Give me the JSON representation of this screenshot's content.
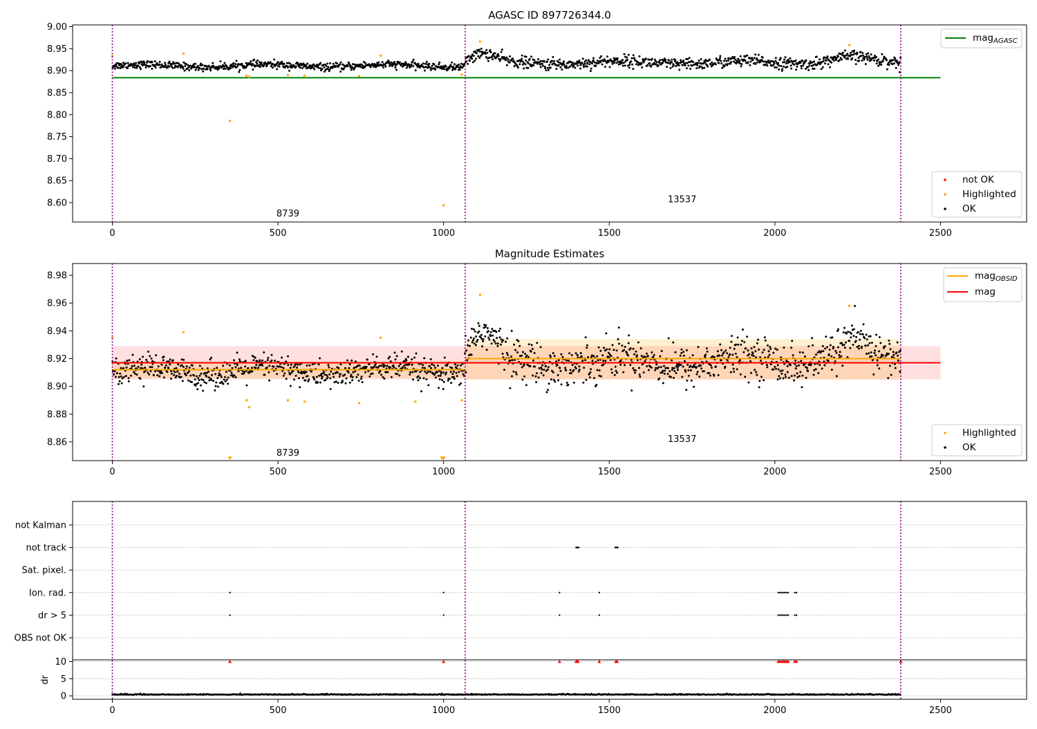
{
  "chart_data": [
    {
      "type": "scatter",
      "title": "AGASC ID 897726344.0",
      "xlim": [
        -120,
        2760
      ],
      "ylim": [
        8.556,
        9.004
      ],
      "xticks": [
        0,
        500,
        1000,
        1500,
        2000,
        2500
      ],
      "yticks": [
        8.6,
        8.65,
        8.7,
        8.75,
        8.8,
        8.85,
        8.9,
        8.95,
        9.0
      ],
      "ytick_labels": [
        "8.60",
        "8.65",
        "8.70",
        "8.75",
        "8.80",
        "8.85",
        "8.90",
        "8.95",
        "9.00"
      ],
      "vlines": [
        0,
        1065,
        2380
      ],
      "annotations": [
        {
          "text": "8739",
          "x": 530,
          "y": 8.575
        },
        {
          "text": "13537",
          "x": 1720,
          "y": 8.607
        }
      ],
      "line_legend": [
        {
          "name": "mag_AGASC",
          "main": "mag",
          "sub": "AGASC",
          "color": "#008000"
        }
      ],
      "marker_legend": [
        {
          "name": "not OK",
          "color": "#ff0000"
        },
        {
          "name": "Highlighted",
          "color": "#ffa500"
        },
        {
          "name": "OK",
          "color": "#000000"
        }
      ],
      "lines": [
        {
          "name": "mag_AGASC",
          "x": [
            0,
            2500
          ],
          "y": [
            8.884,
            8.884
          ],
          "color": "#008000"
        }
      ],
      "segments": [
        {
          "x0": 0,
          "x1": 1065,
          "center": 8.911,
          "spread": 0.007,
          "bump_at": 0.5
        },
        {
          "x0": 1065,
          "x1": 2380,
          "center": 8.918,
          "spread": 0.011,
          "bump_at": 0.88
        }
      ],
      "highlighted": [
        {
          "x": 0,
          "y": 8.933
        },
        {
          "x": 215,
          "y": 8.939
        },
        {
          "x": 355,
          "y": 8.786
        },
        {
          "x": 405,
          "y": 8.889
        },
        {
          "x": 413,
          "y": 8.886
        },
        {
          "x": 530,
          "y": 8.89
        },
        {
          "x": 580,
          "y": 8.889
        },
        {
          "x": 745,
          "y": 8.888
        },
        {
          "x": 810,
          "y": 8.934
        },
        {
          "x": 1000,
          "y": 8.594
        },
        {
          "x": 1055,
          "y": 8.891
        },
        {
          "x": 1110,
          "y": 8.966
        },
        {
          "x": 2225,
          "y": 8.958
        }
      ]
    },
    {
      "type": "scatter",
      "title": "Magnitude Estimates",
      "xlim": [
        -120,
        2760
      ],
      "ylim": [
        8.8465,
        8.9885
      ],
      "xticks": [
        0,
        500,
        1000,
        1500,
        2000,
        2500
      ],
      "yticks": [
        8.86,
        8.88,
        8.9,
        8.92,
        8.94,
        8.96,
        8.98
      ],
      "ytick_labels": [
        "8.86",
        "8.88",
        "8.90",
        "8.92",
        "8.94",
        "8.96",
        "8.98"
      ],
      "vlines": [
        0,
        1065,
        2380
      ],
      "annotations": [
        {
          "text": "8739",
          "x": 530,
          "y": 8.852
        },
        {
          "text": "13537",
          "x": 1720,
          "y": 8.862
        }
      ],
      "line_legend": [
        {
          "name": "mag_OBSID",
          "main": "mag",
          "sub": "OBSID",
          "color": "#ffa500"
        },
        {
          "name": "mag",
          "main": "mag",
          "sub": "",
          "color": "#ff0000"
        }
      ],
      "marker_legend": [
        {
          "name": "Highlighted",
          "color": "#ffa500"
        },
        {
          "name": "OK",
          "color": "#000000"
        }
      ],
      "bands": [
        {
          "x0": 0,
          "x1": 2500,
          "y0": 8.905,
          "y1": 8.929,
          "color": "#ff0000",
          "opacity": 0.12
        },
        {
          "x0": 0,
          "x1": 1065,
          "y0": 8.906,
          "y1": 8.918,
          "color": "#ffa500",
          "opacity": 0.18
        },
        {
          "x0": 1065,
          "x1": 2380,
          "y0": 8.905,
          "y1": 8.934,
          "color": "#ffa500",
          "opacity": 0.18
        }
      ],
      "lines": [
        {
          "name": "mag",
          "x": [
            0,
            2500
          ],
          "y": [
            8.917,
            8.917
          ],
          "color": "#ff0000"
        },
        {
          "name": "mag_OBSID",
          "x": [
            0,
            1065
          ],
          "y": [
            8.912,
            8.912
          ],
          "color": "#ffa500"
        },
        {
          "name": "mag_OBSID",
          "x": [
            1065,
            2380
          ],
          "y": [
            8.92,
            8.92
          ],
          "color": "#ffa500"
        }
      ],
      "segments": [
        {
          "x0": 0,
          "x1": 1065,
          "center": 8.911,
          "spread": 0.008,
          "bump_at": 0.5
        },
        {
          "x0": 1065,
          "x1": 2380,
          "center": 8.918,
          "spread": 0.012,
          "bump_at": 0.88
        }
      ],
      "highlighted": [
        {
          "x": 0,
          "y": 8.935
        },
        {
          "x": 215,
          "y": 8.939
        },
        {
          "x": 405,
          "y": 8.89
        },
        {
          "x": 413,
          "y": 8.885
        },
        {
          "x": 530,
          "y": 8.89
        },
        {
          "x": 580,
          "y": 8.889
        },
        {
          "x": 745,
          "y": 8.888
        },
        {
          "x": 810,
          "y": 8.935
        },
        {
          "x": 915,
          "y": 8.889
        },
        {
          "x": 1055,
          "y": 8.89
        },
        {
          "x": 1110,
          "y": 8.966
        },
        {
          "x": 2225,
          "y": 8.958
        }
      ],
      "offscale_low": [
        355,
        995,
        1000
      ]
    },
    {
      "type": "scatter",
      "title": "",
      "xlim": [
        -120,
        2760
      ],
      "xticks": [
        0,
        500,
        1000,
        1500,
        2000,
        2500
      ],
      "vlines": [
        0,
        1065,
        2380
      ],
      "flag_rows": [
        "not Kalman",
        "not track",
        "Sat. pixel.",
        "Ion. rad.",
        "dr > 5",
        "OBS not OK"
      ],
      "flags": {
        "not track": [
          1400,
          1402,
          1404,
          1406,
          1408,
          1518,
          1520,
          1522,
          1524,
          1526
        ],
        "Ion. rad.": [
          355,
          1000,
          1350,
          1470,
          2010,
          2015,
          2020,
          2025,
          2030,
          2035,
          2040,
          2060,
          2065
        ],
        "dr > 5": [
          355,
          1000,
          1350,
          1470,
          2010,
          2015,
          2020,
          2025,
          2030,
          2035,
          2040,
          2060,
          2065
        ]
      },
      "dr": {
        "ylabel": "dr",
        "ylim": [
          -1,
          10.5
        ],
        "yticks": [
          0,
          5,
          10
        ],
        "ytick_labels": [
          "0",
          "5",
          "10"
        ],
        "capped": [
          355,
          1000,
          1350,
          1400,
          1403,
          1406,
          1470,
          1520,
          1524,
          2010,
          2015,
          2020,
          2025,
          2030,
          2035,
          2040,
          2060,
          2065,
          2380
        ],
        "cap_value": 10,
        "baseline": 0.3
      }
    }
  ]
}
